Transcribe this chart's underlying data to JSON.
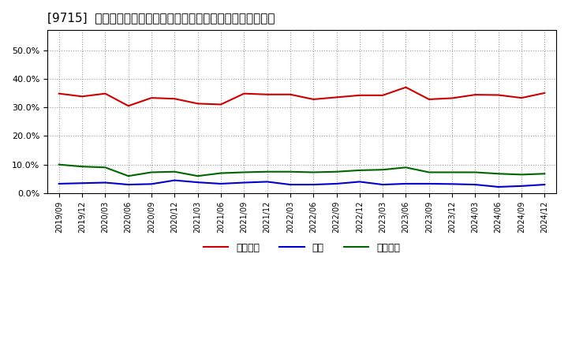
{
  "title": "[9715]  売上債権、在庫、買入債務の総資産に対する比率の推移",
  "x_labels": [
    "2019/09",
    "2019/12",
    "2020/03",
    "2020/06",
    "2020/09",
    "2020/12",
    "2021/03",
    "2021/06",
    "2021/09",
    "2021/12",
    "2022/03",
    "2022/06",
    "2022/09",
    "2022/12",
    "2023/03",
    "2023/06",
    "2023/09",
    "2023/12",
    "2024/03",
    "2024/06",
    "2024/09",
    "2024/12"
  ],
  "receivables": [
    0.348,
    0.338,
    0.348,
    0.305,
    0.333,
    0.33,
    0.313,
    0.31,
    0.348,
    0.345,
    0.345,
    0.328,
    0.335,
    0.342,
    0.342,
    0.37,
    0.328,
    0.332,
    0.344,
    0.343,
    0.333,
    0.35
  ],
  "inventory": [
    0.033,
    0.035,
    0.037,
    0.03,
    0.032,
    0.045,
    0.038,
    0.033,
    0.037,
    0.04,
    0.03,
    0.03,
    0.033,
    0.04,
    0.03,
    0.033,
    0.033,
    0.032,
    0.03,
    0.022,
    0.025,
    0.03
  ],
  "payables": [
    0.1,
    0.093,
    0.09,
    0.06,
    0.073,
    0.075,
    0.06,
    0.07,
    0.073,
    0.075,
    0.075,
    0.073,
    0.075,
    0.08,
    0.082,
    0.09,
    0.073,
    0.073,
    0.073,
    0.068,
    0.065,
    0.068
  ],
  "receivables_color": "#cc0000",
  "inventory_color": "#0000cc",
  "payables_color": "#006600",
  "ylim": [
    0.0,
    0.57
  ],
  "yticks": [
    0.0,
    0.1,
    0.2,
    0.3,
    0.4,
    0.5
  ],
  "legend_labels": [
    "売上債権",
    "在庫",
    "買入債務"
  ],
  "bg_color": "#ffffff",
  "plot_bg_color": "#ffffff",
  "grid_color": "#999999"
}
